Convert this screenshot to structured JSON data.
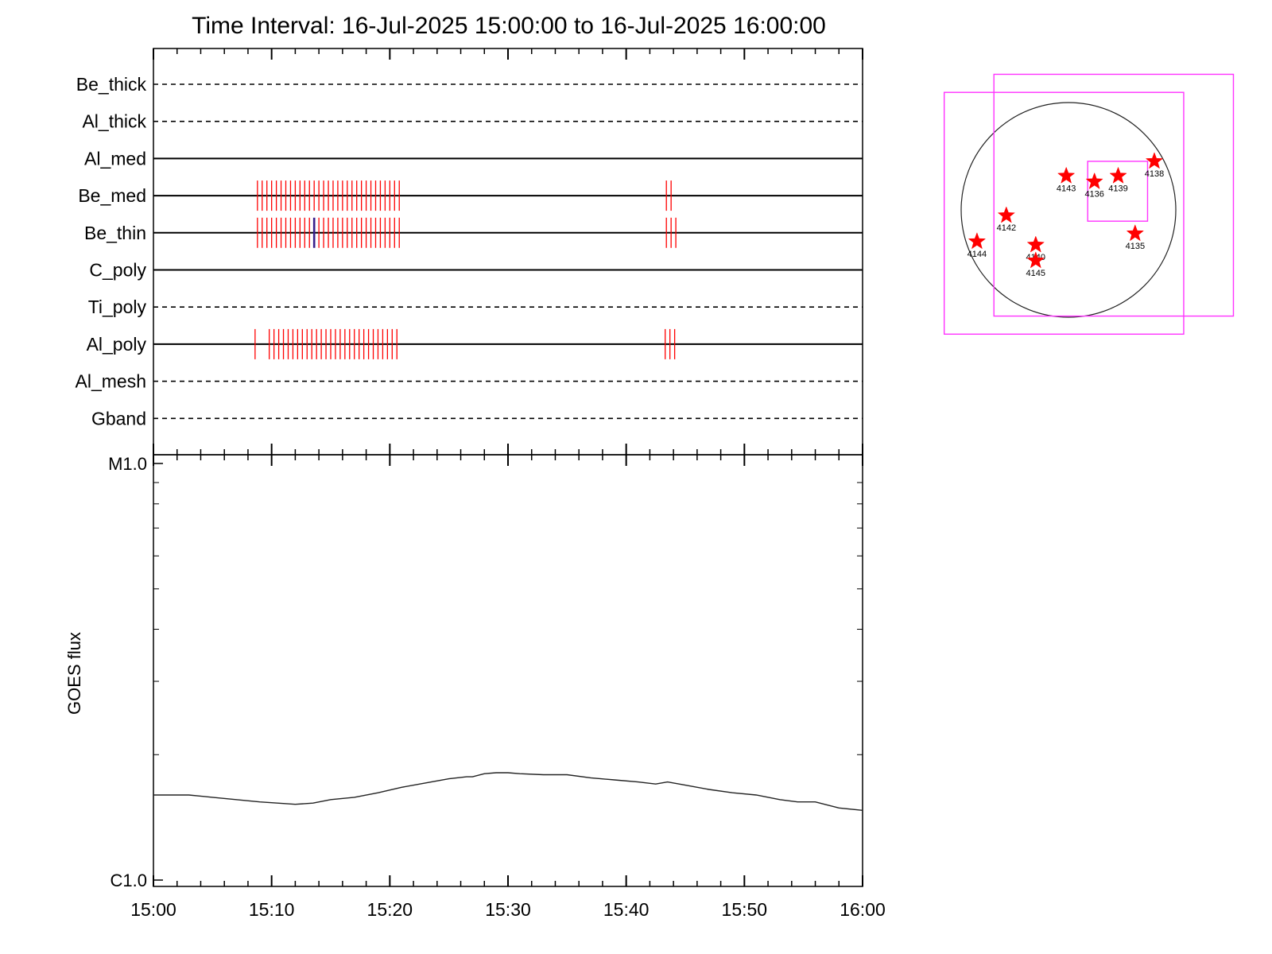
{
  "title": "Time Interval: 16-Jul-2025 15:00:00 to 16-Jul-2025 16:00:00",
  "colors": {
    "foreground": "#000000",
    "exposure_tick": "#ff0000",
    "highlight_tick": "#3a1f8c",
    "box": "#ff33ff",
    "star": "#ff0000"
  },
  "chart_data": [
    {
      "type": "timeline",
      "x_tick_labels": [
        "15:00",
        "15:10",
        "15:20",
        "15:30",
        "15:40",
        "15:50",
        "16:00"
      ],
      "xlim_minutes": [
        0,
        60
      ],
      "channels": [
        {
          "label": "Be_thick",
          "line": "dashed",
          "events": []
        },
        {
          "label": "Al_thick",
          "line": "dashed",
          "events": []
        },
        {
          "label": "Al_med",
          "line": "solid",
          "events": []
        },
        {
          "label": "Be_med",
          "line": "solid",
          "events": [
            8.8,
            9.2,
            9.6,
            10.0,
            10.4,
            10.8,
            11.2,
            11.6,
            12.0,
            12.4,
            12.8,
            13.2,
            13.6,
            14.0,
            14.4,
            14.8,
            15.2,
            15.6,
            16.0,
            16.4,
            16.8,
            17.2,
            17.6,
            18.0,
            18.4,
            18.8,
            19.2,
            19.6,
            20.0,
            20.4,
            20.8,
            43.4,
            43.8
          ]
        },
        {
          "label": "Be_thin",
          "line": "solid",
          "events": [
            8.8,
            9.2,
            9.6,
            10.0,
            10.4,
            10.8,
            11.2,
            11.6,
            12.0,
            12.4,
            12.8,
            13.2,
            14.0,
            14.4,
            14.8,
            15.2,
            15.6,
            16.0,
            16.4,
            16.8,
            17.2,
            17.6,
            18.0,
            18.4,
            18.8,
            19.2,
            19.6,
            20.0,
            20.4,
            20.8,
            43.4,
            43.8,
            44.2
          ],
          "highlight_events": [
            13.6
          ]
        },
        {
          "label": "C_poly",
          "line": "solid",
          "events": []
        },
        {
          "label": "Ti_poly",
          "line": "dashed",
          "events": []
        },
        {
          "label": "Al_poly",
          "line": "solid",
          "events": [
            8.6,
            9.8,
            10.2,
            10.6,
            11.0,
            11.4,
            11.8,
            12.2,
            12.6,
            13.0,
            13.4,
            13.8,
            14.2,
            14.6,
            15.0,
            15.4,
            15.8,
            16.2,
            16.6,
            17.0,
            17.4,
            17.8,
            18.2,
            18.6,
            19.0,
            19.4,
            19.8,
            20.2,
            20.6,
            43.3,
            43.7,
            44.1
          ]
        },
        {
          "label": "Al_mesh",
          "line": "dashed",
          "events": []
        },
        {
          "label": "Gband",
          "line": "dashed",
          "events": []
        }
      ]
    },
    {
      "type": "line",
      "ylabel": "GOES flux",
      "y_tick_labels": [
        {
          "label": "M1.0",
          "value": 1e-05
        },
        {
          "label": "C1.0",
          "value": 1e-06
        }
      ],
      "ylim": [
        1e-06,
        1e-05
      ],
      "y_scale": "log",
      "x_tick_labels": [
        "15:00",
        "15:10",
        "15:20",
        "15:30",
        "15:40",
        "15:50",
        "16:00"
      ],
      "xlim_minutes": [
        0,
        60
      ],
      "series": [
        {
          "x_minutes": [
            0,
            1.5,
            3,
            5,
            7,
            9,
            10.5,
            12,
            13.5,
            15,
            17,
            19,
            21,
            23,
            25,
            26.5,
            27,
            28,
            29,
            30,
            31,
            33,
            35,
            37,
            39,
            41,
            42.5,
            43.5,
            45,
            47,
            49,
            51,
            53,
            54.5,
            56,
            58,
            60
          ],
          "y": [
            1.6e-06,
            1.6e-06,
            1.6e-06,
            1.58e-06,
            1.56e-06,
            1.54e-06,
            1.53e-06,
            1.52e-06,
            1.53e-06,
            1.56e-06,
            1.58e-06,
            1.62e-06,
            1.67e-06,
            1.71e-06,
            1.75e-06,
            1.77e-06,
            1.77e-06,
            1.8e-06,
            1.81e-06,
            1.81e-06,
            1.8e-06,
            1.79e-06,
            1.79e-06,
            1.76e-06,
            1.74e-06,
            1.72e-06,
            1.7e-06,
            1.72e-06,
            1.69e-06,
            1.65e-06,
            1.62e-06,
            1.6e-06,
            1.56e-06,
            1.54e-06,
            1.54e-06,
            1.49e-06,
            1.47e-06
          ]
        }
      ]
    },
    {
      "type": "scatter",
      "description_of_axes": "solar disk, heliocentric arcsec",
      "disk_radius_arcsec": 950,
      "fov_boxes_arcsec": [
        {
          "x": [
            -1100,
            1020
          ],
          "y": [
            -1100,
            1040
          ]
        },
        {
          "x": [
            -660,
            1460
          ],
          "y": [
            -940,
            1200
          ]
        },
        {
          "x": [
            170,
            700
          ],
          "y": [
            -100,
            430
          ]
        }
      ],
      "active_regions": [
        {
          "label": "4143",
          "x": -20,
          "y": 300
        },
        {
          "label": "4136",
          "x": 230,
          "y": 250
        },
        {
          "label": "4139",
          "x": 440,
          "y": 300
        },
        {
          "label": "4138",
          "x": 760,
          "y": 430
        },
        {
          "label": "4142",
          "x": -550,
          "y": -50
        },
        {
          "label": "4144",
          "x": -810,
          "y": -280
        },
        {
          "label": "4140",
          "x": -290,
          "y": -310
        },
        {
          "label": "4145",
          "x": -290,
          "y": -450
        },
        {
          "label": "4135",
          "x": 590,
          "y": -210
        }
      ]
    }
  ]
}
